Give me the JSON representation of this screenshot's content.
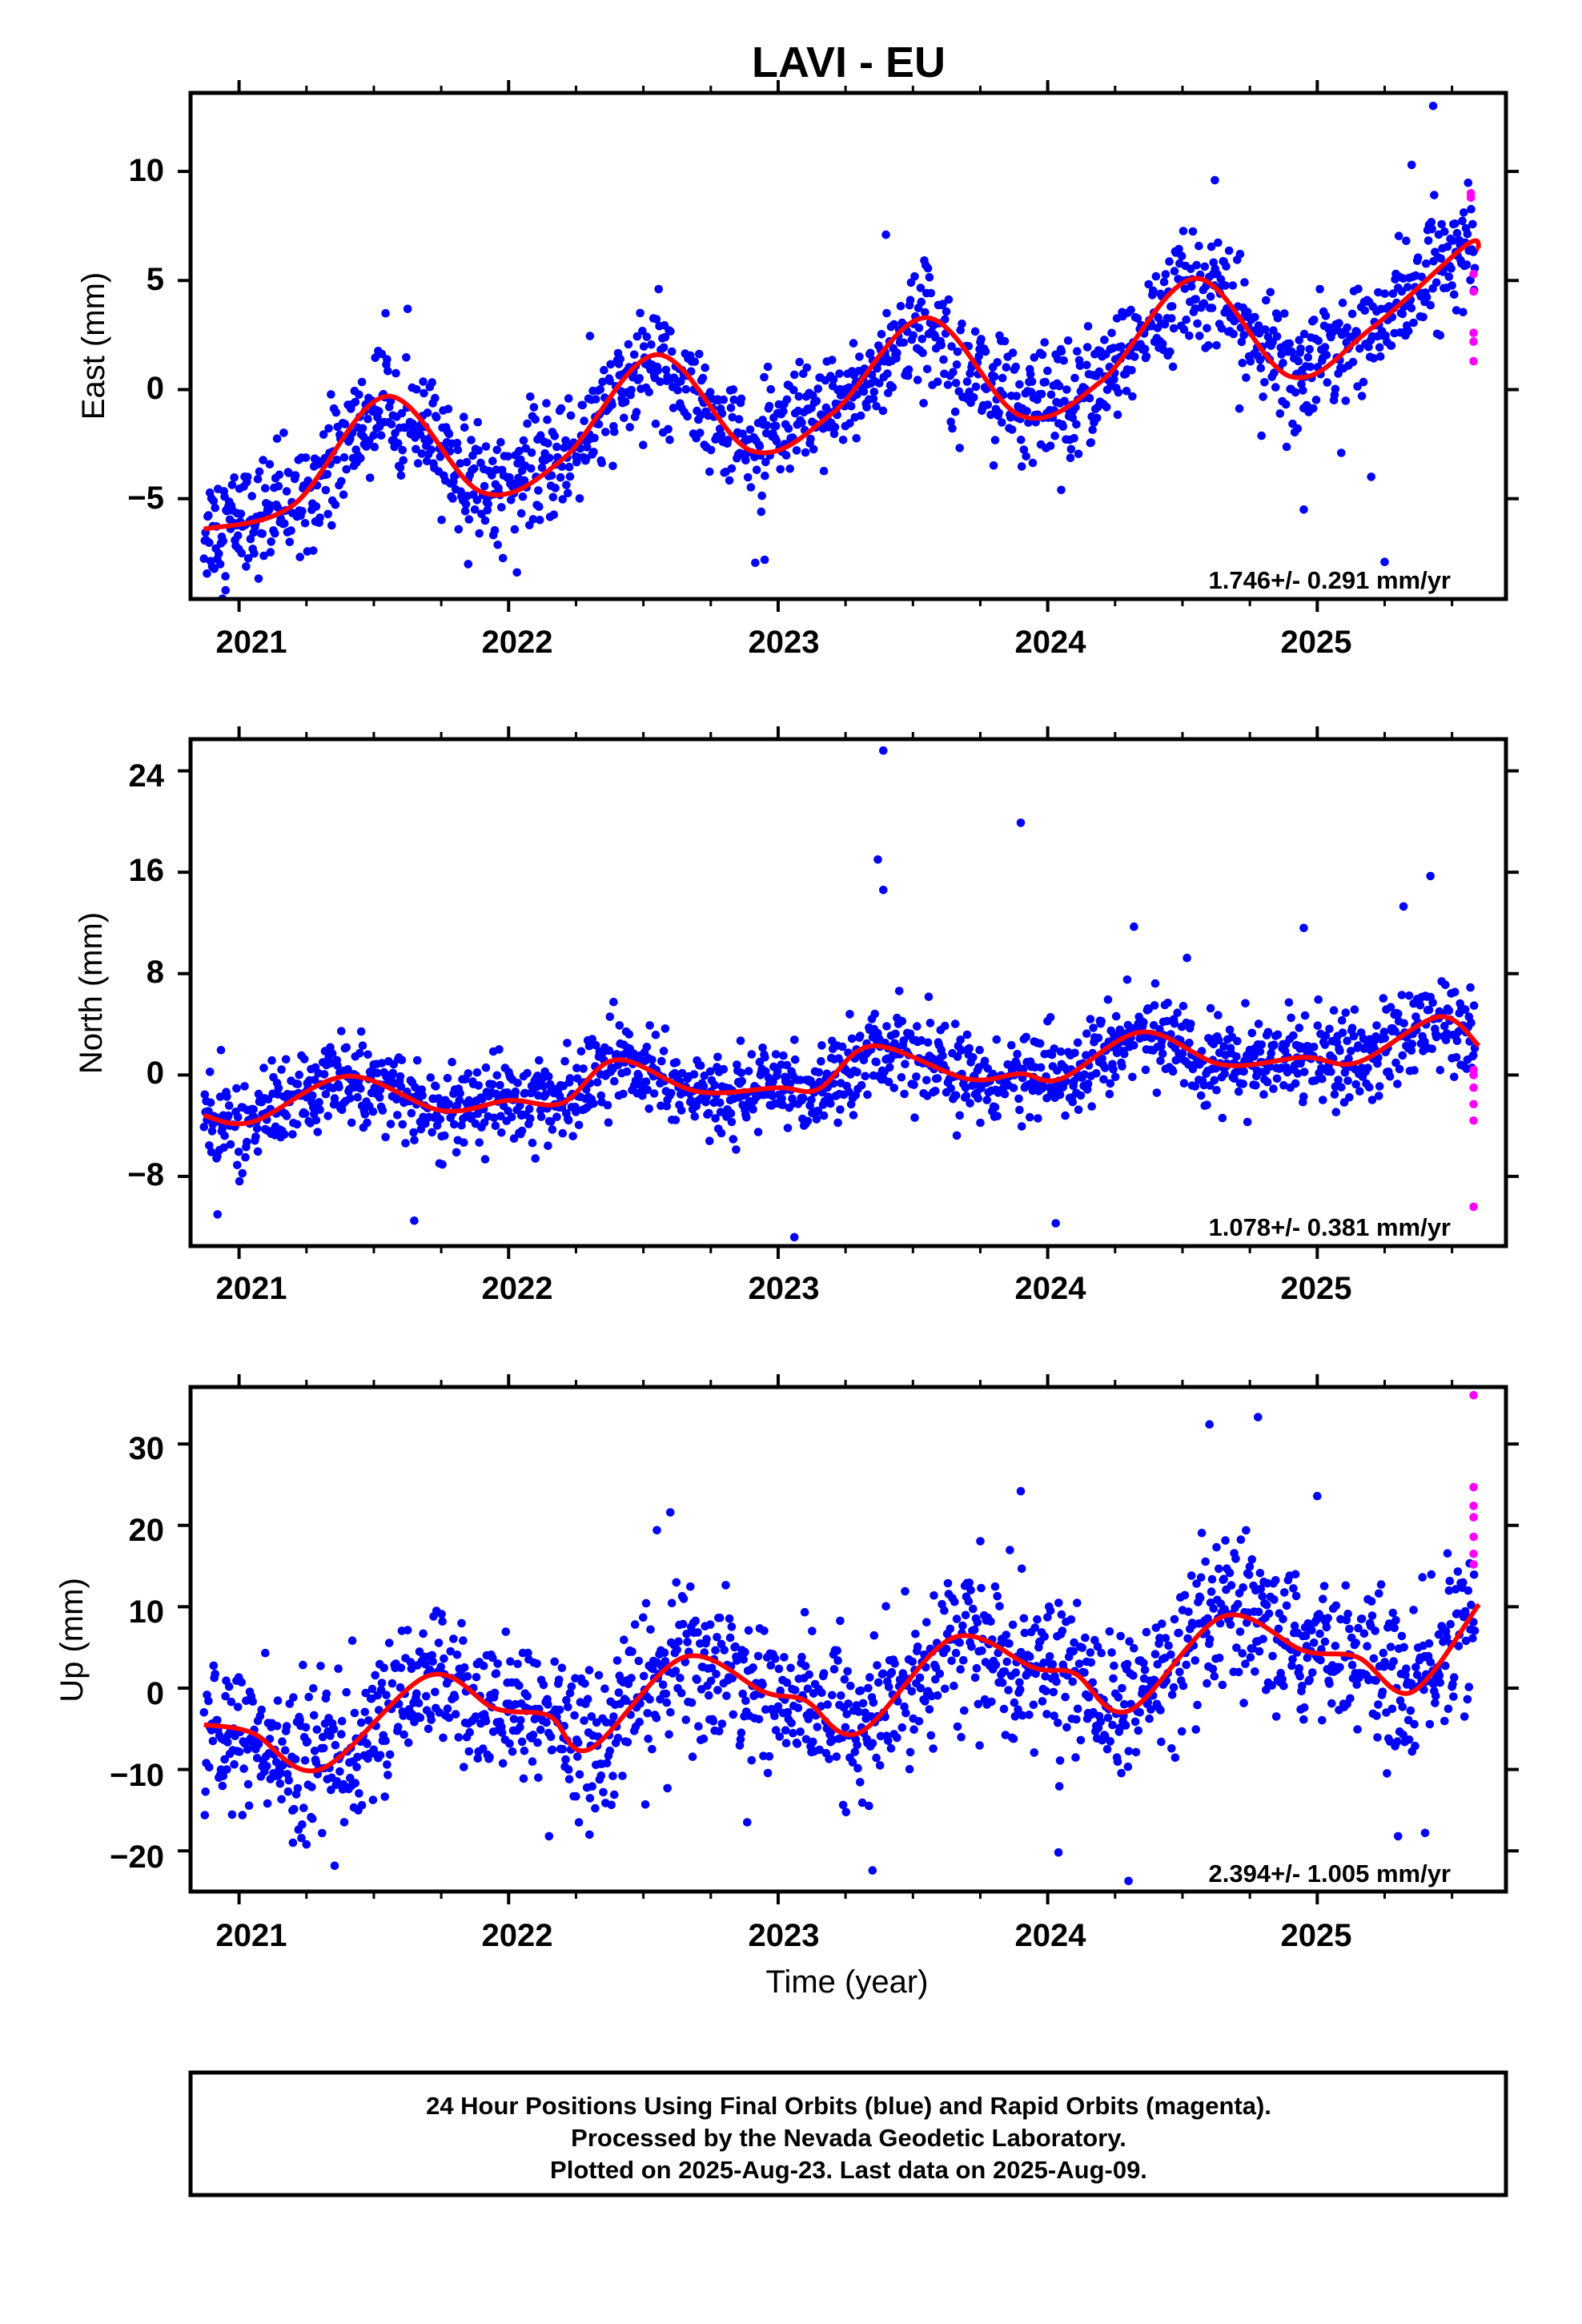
{
  "title": "LAVI - EU",
  "xlabel": "Time (year)",
  "x_ticks": [
    "2021",
    "2022",
    "2023",
    "2024",
    "2025"
  ],
  "colors": {
    "final": "#0000ff",
    "rapid": "#ff00ff",
    "fit": "#ff0000",
    "frame": "#000000"
  },
  "footer": [
    "24 Hour Positions Using Final Orbits (blue) and Rapid Orbits (magenta).",
    "Processed by the Nevada Geodetic Laboratory.",
    "Plotted on 2025-Aug-23. Last data on 2025-Aug-09."
  ],
  "chart_data": [
    {
      "type": "scatter",
      "component": "east",
      "ylabel": "East (mm)",
      "y_ticks": [
        "10",
        "5",
        "0",
        "−5"
      ],
      "xlim": [
        2020.82,
        2025.7
      ],
      "ylim": [
        -9.6,
        13.6
      ],
      "rate_text": "1.746+/- 0.291 mm/yr",
      "fit": {
        "start": 2020.87,
        "end": 2025.6,
        "trend_mm_per_yr": 1.746,
        "offset_mm": -6.4,
        "annual_amp_mm": 2.6,
        "annual_phase_yr": 0.3,
        "noise_sd_mm": 1.3
      },
      "fit_curve": [
        [
          2020.87,
          -6.4
        ],
        [
          2021.2,
          -5.3
        ],
        [
          2021.55,
          -0.3
        ],
        [
          2021.9,
          -4.7
        ],
        [
          2022.2,
          -3.2
        ],
        [
          2022.55,
          1.6
        ],
        [
          2022.9,
          -2.8
        ],
        [
          2023.2,
          -1.1
        ],
        [
          2023.55,
          3.3
        ],
        [
          2023.9,
          -1.2
        ],
        [
          2024.2,
          0.4
        ],
        [
          2024.55,
          5.1
        ],
        [
          2024.9,
          0.6
        ],
        [
          2025.2,
          2.8
        ],
        [
          2025.55,
          6.6
        ],
        [
          2025.6,
          6.4
        ]
      ],
      "rapid_points": [
        [
          2025.57,
          9.0
        ],
        [
          2025.57,
          8.8
        ],
        [
          2025.58,
          5.3
        ],
        [
          2025.58,
          4.5
        ],
        [
          2025.58,
          2.6
        ],
        [
          2025.58,
          2.2
        ],
        [
          2025.58,
          1.3
        ]
      ],
      "outliers": [
        [
          2020.95,
          -9.2
        ],
        [
          2021.85,
          -8.0
        ],
        [
          2022.95,
          -7.8
        ],
        [
          2024.05,
          -4.6
        ],
        [
          2024.95,
          -5.5
        ],
        [
          2025.2,
          -4.0
        ],
        [
          2025.25,
          -7.9
        ],
        [
          2025.43,
          13.0
        ],
        [
          2025.35,
          10.3
        ],
        [
          2024.62,
          9.6
        ],
        [
          2023.4,
          7.1
        ]
      ]
    },
    {
      "type": "scatter",
      "component": "north",
      "ylabel": "North (mm)",
      "y_ticks": [
        "24",
        "16",
        "8",
        "0",
        "−8"
      ],
      "xlim": [
        2020.82,
        2025.7
      ],
      "ylim": [
        -13.5,
        26.5
      ],
      "rate_text": "1.078+/- 0.381 mm/yr",
      "fit": {
        "start": 2020.87,
        "end": 2025.6,
        "trend_mm_per_yr": 1.078,
        "offset_mm": -3.2,
        "annual_amp_mm": 1.5,
        "annual_phase_yr": 0.43,
        "noise_sd_mm": 1.7
      },
      "fit_curve": [
        [
          2020.87,
          -3.2
        ],
        [
          2021.05,
          -3.7
        ],
        [
          2021.4,
          -0.1
        ],
        [
          2021.75,
          -2.8
        ],
        [
          2022.0,
          -2.0
        ],
        [
          2022.2,
          -2.2
        ],
        [
          2022.4,
          1.2
        ],
        [
          2022.7,
          -1.3
        ],
        [
          2023.0,
          -1.0
        ],
        [
          2023.15,
          -1.1
        ],
        [
          2023.35,
          2.3
        ],
        [
          2023.7,
          -0.3
        ],
        [
          2023.9,
          0.1
        ],
        [
          2024.05,
          -0.3
        ],
        [
          2024.35,
          3.4
        ],
        [
          2024.65,
          0.8
        ],
        [
          2024.95,
          1.4
        ],
        [
          2025.15,
          1.0
        ],
        [
          2025.45,
          4.6
        ],
        [
          2025.6,
          2.3
        ]
      ],
      "rapid_points": [
        [
          2025.58,
          0.4
        ],
        [
          2025.58,
          0.0
        ],
        [
          2025.58,
          -1.0
        ],
        [
          2025.58,
          -2.3
        ],
        [
          2025.58,
          -3.6
        ],
        [
          2025.58,
          -10.4
        ]
      ],
      "outliers": [
        [
          2023.39,
          25.6
        ],
        [
          2023.37,
          17.0
        ],
        [
          2023.39,
          14.6
        ],
        [
          2023.9,
          19.9
        ],
        [
          2023.06,
          -12.8
        ],
        [
          2024.03,
          -11.7
        ],
        [
          2020.92,
          -11.0
        ],
        [
          2021.65,
          -11.5
        ],
        [
          2025.42,
          15.7
        ],
        [
          2025.32,
          13.3
        ],
        [
          2024.32,
          11.7
        ],
        [
          2024.95,
          11.6
        ]
      ]
    },
    {
      "type": "scatter",
      "component": "up",
      "ylabel": "Up (mm)",
      "y_ticks": [
        "30",
        "20",
        "10",
        "0",
        "−10",
        "−20"
      ],
      "xlim": [
        2020.82,
        2025.7
      ],
      "ylim": [
        -25,
        37
      ],
      "rate_text": "2.394+/- 1.005 mm/yr",
      "fit": {
        "start": 2020.87,
        "end": 2025.6,
        "trend_mm_per_yr": 2.394,
        "offset_mm": -4.5,
        "annual_amp_mm": 5.2,
        "annual_phase_yr": 0.68,
        "noise_sd_mm": 4.5
      },
      "fit_curve": [
        [
          2020.87,
          -4.5
        ],
        [
          2021.05,
          -5.5
        ],
        [
          2021.3,
          -10.0
        ],
        [
          2021.7,
          1.5
        ],
        [
          2021.95,
          -2.5
        ],
        [
          2022.15,
          -3.4
        ],
        [
          2022.3,
          -7.5
        ],
        [
          2022.65,
          3.8
        ],
        [
          2022.95,
          -0.5
        ],
        [
          2023.1,
          -1.5
        ],
        [
          2023.3,
          -5.5
        ],
        [
          2023.65,
          6.2
        ],
        [
          2023.95,
          2.5
        ],
        [
          2024.1,
          1.8
        ],
        [
          2024.3,
          -2.8
        ],
        [
          2024.65,
          8.8
        ],
        [
          2024.95,
          4.6
        ],
        [
          2025.15,
          3.8
        ],
        [
          2025.35,
          -0.5
        ],
        [
          2025.6,
          10.3
        ]
      ],
      "rapid_points": [
        [
          2025.58,
          36.0
        ],
        [
          2025.58,
          24.7
        ],
        [
          2025.58,
          22.4
        ],
        [
          2025.58,
          21.0
        ],
        [
          2025.58,
          18.6
        ],
        [
          2025.58,
          16.5
        ],
        [
          2025.58,
          15.2
        ]
      ],
      "outliers": [
        [
          2024.6,
          32.4
        ],
        [
          2024.78,
          33.3
        ],
        [
          2023.9,
          24.2
        ],
        [
          2025.0,
          23.6
        ],
        [
          2022.6,
          21.6
        ],
        [
          2022.55,
          19.4
        ],
        [
          2023.35,
          -22.4
        ],
        [
          2024.04,
          -20.2
        ],
        [
          2024.3,
          -23.7
        ],
        [
          2021.2,
          -19.0
        ],
        [
          2021.25,
          -19.2
        ],
        [
          2022.15,
          -18.2
        ],
        [
          2022.3,
          -18.0
        ],
        [
          2025.3,
          -18.2
        ],
        [
          2025.4,
          -17.8
        ]
      ]
    }
  ]
}
